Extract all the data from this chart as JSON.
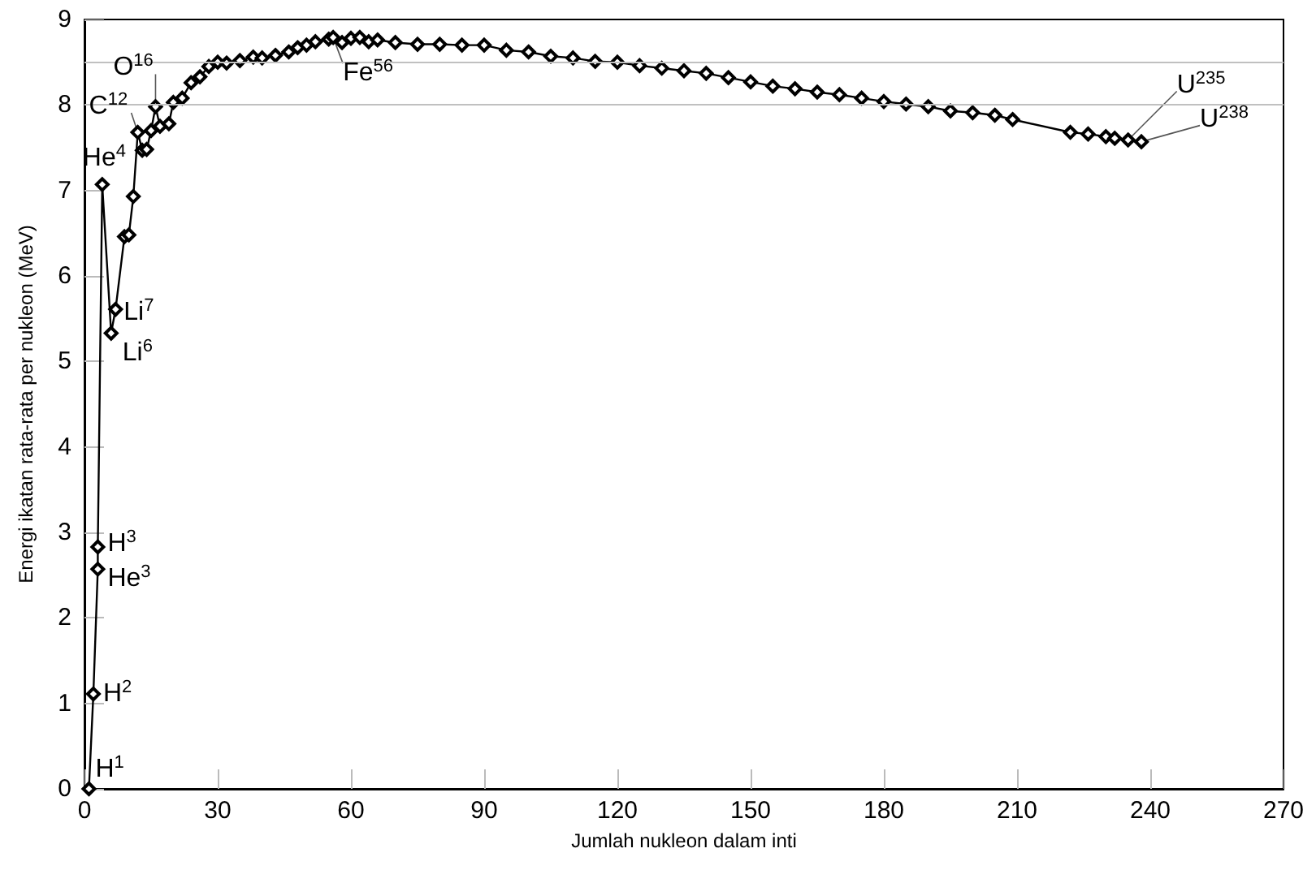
{
  "chart_data": {
    "type": "line",
    "xlabel": "Jumlah nukleon dalam inti",
    "ylabel": "Energi ikatan rata-rata per nukleon (MeV)",
    "x": [
      1,
      2,
      3,
      3,
      4,
      6,
      7,
      9,
      10,
      11,
      12,
      13,
      14,
      15,
      16,
      17,
      19,
      20,
      22,
      24,
      26,
      28,
      30,
      32,
      35,
      38,
      40,
      43,
      46,
      48,
      50,
      52,
      55,
      56,
      58,
      60,
      62,
      64,
      66,
      70,
      75,
      80,
      85,
      90,
      95,
      100,
      105,
      110,
      115,
      120,
      125,
      130,
      135,
      140,
      145,
      150,
      155,
      160,
      165,
      170,
      175,
      180,
      185,
      190,
      195,
      200,
      205,
      209,
      222,
      226,
      230,
      232,
      235,
      238
    ],
    "values": [
      0,
      1.11,
      2.57,
      2.83,
      7.07,
      5.33,
      5.61,
      6.46,
      6.48,
      6.93,
      7.68,
      7.47,
      7.48,
      7.7,
      7.98,
      7.75,
      7.78,
      8.03,
      8.08,
      8.26,
      8.33,
      8.45,
      8.5,
      8.49,
      8.52,
      8.56,
      8.55,
      8.58,
      8.62,
      8.67,
      8.7,
      8.74,
      8.77,
      8.79,
      8.73,
      8.78,
      8.79,
      8.74,
      8.76,
      8.73,
      8.71,
      8.71,
      8.7,
      8.7,
      8.64,
      8.62,
      8.57,
      8.55,
      8.51,
      8.5,
      8.46,
      8.43,
      8.4,
      8.37,
      8.32,
      8.27,
      8.22,
      8.19,
      8.15,
      8.12,
      8.08,
      8.04,
      8.01,
      7.98,
      7.93,
      7.91,
      7.88,
      7.83,
      7.68,
      7.66,
      7.63,
      7.61,
      7.59,
      7.57
    ],
    "color": "#000000",
    "marker": "diamond",
    "line_style": "solid",
    "xlim": [
      0,
      270
    ],
    "xticks": [
      0,
      30,
      60,
      90,
      120,
      150,
      180,
      210,
      240,
      270
    ],
    "ylim": [
      0,
      9
    ],
    "yticks": [
      0,
      1,
      2,
      3,
      4,
      5,
      6,
      7,
      8,
      9
    ],
    "grid": false,
    "ref_lines": [
      {
        "axis": "y",
        "value": 8.5,
        "color": "#c0c0c0"
      },
      {
        "axis": "y",
        "value": 8,
        "color": "#c0c0c0"
      }
    ],
    "annotations": [
      {
        "text": "H$^{1}$",
        "x": 1,
        "y": 0
      },
      {
        "text": "H$^{2}$",
        "x": 2,
        "y": 1.11
      },
      {
        "text": "H$^{3}$",
        "x": 3,
        "y": 2.83
      },
      {
        "text": "He$^{3}$",
        "x": 3,
        "y": 2.57
      },
      {
        "text": "He$^{4}$",
        "x": 4,
        "y": 7.07
      },
      {
        "text": "Li$^{7}$",
        "x": 7,
        "y": 5.61
      },
      {
        "text": "Li$^{6}$",
        "x": 6,
        "y": 5.33
      },
      {
        "text": "C$^{12}$",
        "x": 12,
        "y": 7.68
      },
      {
        "text": "O$^{16}$",
        "x": 16,
        "y": 7.98
      },
      {
        "text": "Fe$^{56}$",
        "x": 56,
        "y": 8.79
      },
      {
        "text": "U$^{235}$",
        "x": 235,
        "y": 7.59
      },
      {
        "text": "U$^{238}$",
        "x": 238,
        "y": 7.57
      }
    ]
  }
}
